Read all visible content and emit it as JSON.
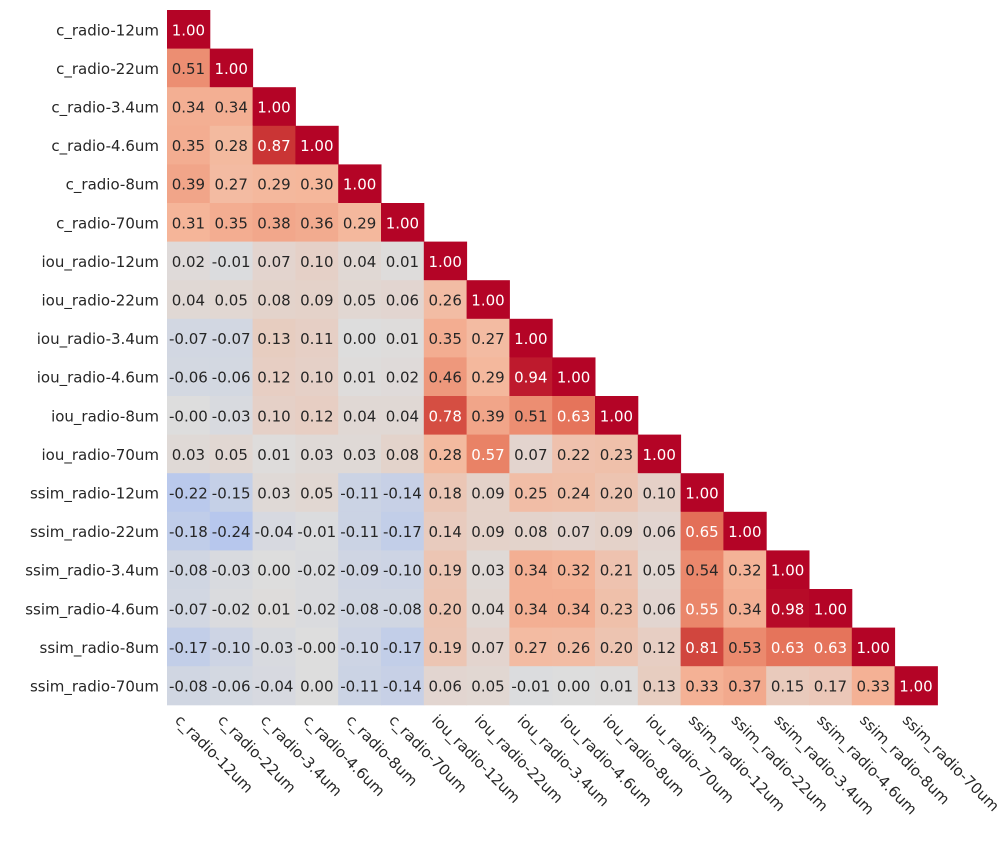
{
  "chart_data": {
    "type": "heatmap",
    "title": "",
    "xlabel": "",
    "ylabel": "",
    "subtype": "lower-triangular correlation matrix",
    "value_range": [
      -1,
      1
    ],
    "colormap": "coolwarm",
    "row_labels": [
      "c_radio-12um",
      "c_radio-22um",
      "c_radio-3.4um",
      "c_radio-4.6um",
      "c_radio-8um",
      "c_radio-70um",
      "iou_radio-12um",
      "iou_radio-22um",
      "iou_radio-3.4um",
      "iou_radio-4.6um",
      "iou_radio-8um",
      "iou_radio-70um",
      "ssim_radio-12um",
      "ssim_radio-22um",
      "ssim_radio-3.4um",
      "ssim_radio-4.6um",
      "ssim_radio-8um",
      "ssim_radio-70um"
    ],
    "col_labels": [
      "c_radio-12um",
      "c_radio-22um",
      "c_radio-3.4um",
      "c_radio-4.6um",
      "c_radio-8um",
      "c_radio-70um",
      "iou_radio-12um",
      "iou_radio-22um",
      "iou_radio-3.4um",
      "iou_radio-4.6um",
      "iou_radio-8um",
      "iou_radio-70um",
      "ssim_radio-12um",
      "ssim_radio-22um",
      "ssim_radio-3.4um",
      "ssim_radio-4.6um",
      "ssim_radio-8um",
      "ssim_radio-70um"
    ],
    "cell_labels": [
      [
        "1.00"
      ],
      [
        "0.51",
        "1.00"
      ],
      [
        "0.34",
        "0.34",
        "1.00"
      ],
      [
        "0.35",
        "0.28",
        "0.87",
        "1.00"
      ],
      [
        "0.39",
        "0.27",
        "0.29",
        "0.30",
        "1.00"
      ],
      [
        "0.31",
        "0.35",
        "0.38",
        "0.36",
        "0.29",
        "1.00"
      ],
      [
        "0.02",
        "-0.01",
        "0.07",
        "0.10",
        "0.04",
        "0.01",
        "1.00"
      ],
      [
        "0.04",
        "0.05",
        "0.08",
        "0.09",
        "0.05",
        "0.06",
        "0.26",
        "1.00"
      ],
      [
        "-0.07",
        "-0.07",
        "0.13",
        "0.11",
        "0.00",
        "0.01",
        "0.35",
        "0.27",
        "1.00"
      ],
      [
        "-0.06",
        "-0.06",
        "0.12",
        "0.10",
        "0.01",
        "0.02",
        "0.46",
        "0.29",
        "0.94",
        "1.00"
      ],
      [
        "-0.00",
        "-0.03",
        "0.10",
        "0.12",
        "0.04",
        "0.04",
        "0.78",
        "0.39",
        "0.51",
        "0.63",
        "1.00"
      ],
      [
        "0.03",
        "0.05",
        "0.01",
        "0.03",
        "0.03",
        "0.08",
        "0.28",
        "0.57",
        "0.07",
        "0.22",
        "0.23",
        "1.00"
      ],
      [
        "-0.22",
        "-0.15",
        "0.03",
        "0.05",
        "-0.11",
        "-0.14",
        "0.18",
        "0.09",
        "0.25",
        "0.24",
        "0.20",
        "0.10",
        "1.00"
      ],
      [
        "-0.18",
        "-0.24",
        "-0.04",
        "-0.01",
        "-0.11",
        "-0.17",
        "0.14",
        "0.09",
        "0.08",
        "0.07",
        "0.09",
        "0.06",
        "0.65",
        "1.00"
      ],
      [
        "-0.08",
        "-0.03",
        "0.00",
        "-0.02",
        "-0.09",
        "-0.10",
        "0.19",
        "0.03",
        "0.34",
        "0.32",
        "0.21",
        "0.05",
        "0.54",
        "0.32",
        "1.00"
      ],
      [
        "-0.07",
        "-0.02",
        "0.01",
        "-0.02",
        "-0.08",
        "-0.08",
        "0.20",
        "0.04",
        "0.34",
        "0.34",
        "0.23",
        "0.06",
        "0.55",
        "0.34",
        "0.98",
        "1.00"
      ],
      [
        "-0.17",
        "-0.10",
        "-0.03",
        "-0.00",
        "-0.10",
        "-0.17",
        "0.19",
        "0.07",
        "0.27",
        "0.26",
        "0.20",
        "0.12",
        "0.81",
        "0.53",
        "0.63",
        "0.63",
        "1.00"
      ],
      [
        "-0.08",
        "-0.06",
        "-0.04",
        "0.00",
        "-0.11",
        "-0.14",
        "0.06",
        "0.05",
        "-0.01",
        "0.00",
        "0.01",
        "0.13",
        "0.33",
        "0.37",
        "0.15",
        "0.17",
        "0.33",
        "1.00"
      ]
    ]
  }
}
